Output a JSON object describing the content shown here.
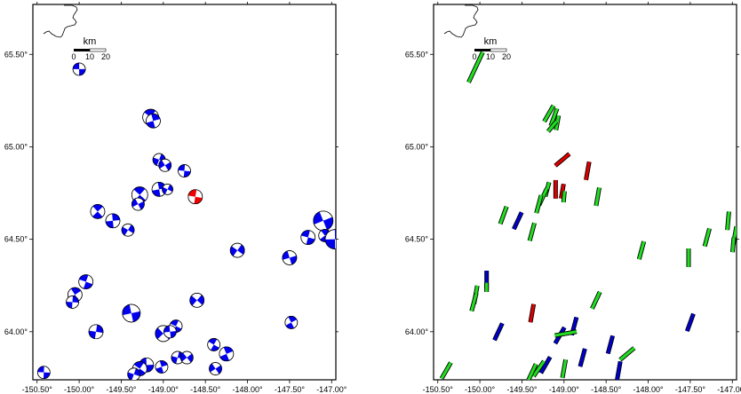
{
  "x_tick_labels": [
    "-150.50°",
    "-150.00°",
    "-149.50°",
    "-149.00°",
    "-148.50°",
    "-148.00°",
    "-147.50°",
    "-147.00°"
  ],
  "y_tick_labels": [
    "65.50°",
    "65.00°",
    "64.50°",
    "64.00°"
  ],
  "scale_bar": {
    "unit": "km",
    "ticks": [
      "0",
      "10",
      "20"
    ]
  },
  "map_extent": {
    "lon_min": -150.55,
    "lon_max": -146.95,
    "lat_min": 63.74,
    "lat_max": 65.77
  },
  "colors": {
    "beachball": "#0000ee",
    "beachball_highlight": "#ee0000",
    "bar_blue": "#0000cc",
    "bar_green": "#22dd22",
    "bar_red": "#dd0000"
  },
  "left_panel": {
    "events": [
      {
        "lon": -150.0,
        "lat": 65.42,
        "r": 7
      },
      {
        "lon": -149.15,
        "lat": 65.16,
        "r": 9
      },
      {
        "lon": -149.12,
        "lat": 65.14,
        "r": 8
      },
      {
        "lon": -149.05,
        "lat": 64.93,
        "r": 7
      },
      {
        "lon": -148.98,
        "lat": 64.9,
        "r": 7
      },
      {
        "lon": -148.75,
        "lat": 64.87,
        "r": 7
      },
      {
        "lon": -149.28,
        "lat": 64.74,
        "r": 9
      },
      {
        "lon": -149.05,
        "lat": 64.77,
        "r": 8
      },
      {
        "lon": -148.95,
        "lat": 64.77,
        "r": 6
      },
      {
        "lon": -149.3,
        "lat": 64.69,
        "r": 7
      },
      {
        "lon": -148.62,
        "lat": 64.73,
        "r": 8,
        "highlight": true
      },
      {
        "lon": -149.78,
        "lat": 64.65,
        "r": 8
      },
      {
        "lon": -149.6,
        "lat": 64.6,
        "r": 8
      },
      {
        "lon": -149.42,
        "lat": 64.55,
        "r": 7
      },
      {
        "lon": -147.1,
        "lat": 64.6,
        "r": 11
      },
      {
        "lon": -147.28,
        "lat": 64.51,
        "r": 8
      },
      {
        "lon": -147.08,
        "lat": 64.52,
        "r": 7
      },
      {
        "lon": -146.96,
        "lat": 64.5,
        "r": 11
      },
      {
        "lon": -148.12,
        "lat": 64.44,
        "r": 8
      },
      {
        "lon": -147.5,
        "lat": 64.4,
        "r": 8
      },
      {
        "lon": -149.92,
        "lat": 64.27,
        "r": 8
      },
      {
        "lon": -150.05,
        "lat": 64.2,
        "r": 8
      },
      {
        "lon": -150.08,
        "lat": 64.16,
        "r": 7
      },
      {
        "lon": -148.6,
        "lat": 64.17,
        "r": 8
      },
      {
        "lon": -149.38,
        "lat": 64.1,
        "r": 10
      },
      {
        "lon": -148.85,
        "lat": 64.03,
        "r": 7
      },
      {
        "lon": -147.48,
        "lat": 64.05,
        "r": 7
      },
      {
        "lon": -149.8,
        "lat": 64.0,
        "r": 8
      },
      {
        "lon": -149.0,
        "lat": 63.99,
        "r": 9
      },
      {
        "lon": -148.92,
        "lat": 64.0,
        "r": 7
      },
      {
        "lon": -148.4,
        "lat": 63.93,
        "r": 7
      },
      {
        "lon": -148.25,
        "lat": 63.88,
        "r": 8
      },
      {
        "lon": -148.83,
        "lat": 63.86,
        "r": 7
      },
      {
        "lon": -148.72,
        "lat": 63.86,
        "r": 7
      },
      {
        "lon": -149.2,
        "lat": 63.82,
        "r": 8
      },
      {
        "lon": -149.28,
        "lat": 63.8,
        "r": 8
      },
      {
        "lon": -149.02,
        "lat": 63.81,
        "r": 7
      },
      {
        "lon": -149.35,
        "lat": 63.77,
        "r": 7
      },
      {
        "lon": -148.38,
        "lat": 63.8,
        "r": 7
      },
      {
        "lon": -150.42,
        "lat": 63.78,
        "r": 7
      }
    ]
  },
  "right_panel": {
    "bars": [
      {
        "lon": -150.05,
        "lat": 65.43,
        "len": 0.18,
        "az": 25,
        "c": "g"
      },
      {
        "lon": -149.18,
        "lat": 65.18,
        "len": 0.1,
        "az": 30,
        "c": "g"
      },
      {
        "lon": -149.12,
        "lat": 65.16,
        "len": 0.1,
        "az": 20,
        "c": "g"
      },
      {
        "lon": -149.08,
        "lat": 65.13,
        "len": 0.08,
        "az": 10,
        "c": "g"
      },
      {
        "lon": -149.14,
        "lat": 65.11,
        "len": 0.07,
        "az": 40,
        "c": "g"
      },
      {
        "lon": -149.02,
        "lat": 64.93,
        "len": 0.1,
        "az": 50,
        "c": "r"
      },
      {
        "lon": -148.72,
        "lat": 64.87,
        "len": 0.1,
        "az": 10,
        "c": "r"
      },
      {
        "lon": -149.2,
        "lat": 64.77,
        "len": 0.08,
        "az": 15,
        "c": "g"
      },
      {
        "lon": -149.1,
        "lat": 64.77,
        "len": 0.1,
        "az": 0,
        "c": "r"
      },
      {
        "lon": -149.02,
        "lat": 64.76,
        "len": 0.08,
        "az": 10,
        "c": "r"
      },
      {
        "lon": -149.0,
        "lat": 64.73,
        "len": 0.06,
        "az": 5,
        "c": "g"
      },
      {
        "lon": -149.25,
        "lat": 64.73,
        "len": 0.1,
        "az": 25,
        "c": "g"
      },
      {
        "lon": -149.3,
        "lat": 64.69,
        "len": 0.1,
        "az": 15,
        "c": "g"
      },
      {
        "lon": -148.6,
        "lat": 64.73,
        "len": 0.1,
        "az": 10,
        "c": "g"
      },
      {
        "lon": -149.72,
        "lat": 64.63,
        "len": 0.1,
        "az": 20,
        "c": "g"
      },
      {
        "lon": -149.55,
        "lat": 64.6,
        "len": 0.1,
        "az": 25,
        "c": "b"
      },
      {
        "lon": -149.38,
        "lat": 64.54,
        "len": 0.1,
        "az": 15,
        "c": "g"
      },
      {
        "lon": -147.05,
        "lat": 64.6,
        "len": 0.1,
        "az": 5,
        "c": "g"
      },
      {
        "lon": -147.3,
        "lat": 64.51,
        "len": 0.1,
        "az": 15,
        "c": "g"
      },
      {
        "lon": -146.97,
        "lat": 64.52,
        "len": 0.1,
        "az": 10,
        "c": "g"
      },
      {
        "lon": -146.99,
        "lat": 64.47,
        "len": 0.08,
        "az": 5,
        "c": "g"
      },
      {
        "lon": -148.08,
        "lat": 64.44,
        "len": 0.1,
        "az": 15,
        "c": "g"
      },
      {
        "lon": -147.52,
        "lat": 64.4,
        "len": 0.1,
        "az": 0,
        "c": "g"
      },
      {
        "lon": -149.92,
        "lat": 64.28,
        "len": 0.1,
        "az": 0,
        "c": "b"
      },
      {
        "lon": -149.92,
        "lat": 64.24,
        "len": 0.05,
        "az": 0,
        "c": "g"
      },
      {
        "lon": -150.05,
        "lat": 64.2,
        "len": 0.1,
        "az": 10,
        "c": "g"
      },
      {
        "lon": -150.07,
        "lat": 64.16,
        "len": 0.1,
        "az": 15,
        "c": "g"
      },
      {
        "lon": -148.62,
        "lat": 64.17,
        "len": 0.1,
        "az": 25,
        "c": "g"
      },
      {
        "lon": -149.38,
        "lat": 64.1,
        "len": 0.1,
        "az": 10,
        "c": "r"
      },
      {
        "lon": -148.88,
        "lat": 64.03,
        "len": 0.1,
        "az": 15,
        "c": "b"
      },
      {
        "lon": -147.5,
        "lat": 64.05,
        "len": 0.1,
        "az": 20,
        "c": "b"
      },
      {
        "lon": -149.78,
        "lat": 64.0,
        "len": 0.1,
        "az": 25,
        "c": "b"
      },
      {
        "lon": -149.05,
        "lat": 63.98,
        "len": 0.1,
        "az": 30,
        "c": "b"
      },
      {
        "lon": -148.98,
        "lat": 63.99,
        "len": 0.12,
        "az": 80,
        "c": "g"
      },
      {
        "lon": -148.45,
        "lat": 63.93,
        "len": 0.1,
        "az": 15,
        "c": "b"
      },
      {
        "lon": -148.25,
        "lat": 63.88,
        "len": 0.1,
        "az": 50,
        "c": "g"
      },
      {
        "lon": -148.78,
        "lat": 63.86,
        "len": 0.1,
        "az": 15,
        "c": "b"
      },
      {
        "lon": -149.22,
        "lat": 63.82,
        "len": 0.1,
        "az": 30,
        "c": "b"
      },
      {
        "lon": -149.3,
        "lat": 63.8,
        "len": 0.1,
        "az": 35,
        "c": "g"
      },
      {
        "lon": -149.38,
        "lat": 63.78,
        "len": 0.1,
        "az": 25,
        "c": "g"
      },
      {
        "lon": -149.0,
        "lat": 63.8,
        "len": 0.1,
        "az": 10,
        "c": "g"
      },
      {
        "lon": -148.35,
        "lat": 63.79,
        "len": 0.1,
        "az": 10,
        "c": "b"
      },
      {
        "lon": -150.4,
        "lat": 63.79,
        "len": 0.1,
        "az": 30,
        "c": "g"
      }
    ]
  }
}
